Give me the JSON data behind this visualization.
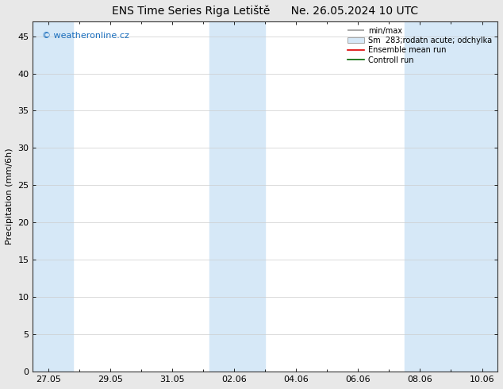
{
  "title_left": "ENS Time Series Riga Letiště",
  "title_right": "Ne. 26.05.2024 10 UTC",
  "ylabel": "Precipitation (mm/6h)",
  "watermark": "© weatheronline.cz",
  "watermark_color": "#1a6ebd",
  "background_color": "#e8e8e8",
  "plot_bg_color": "#ffffff",
  "shaded_band_color": "#d6e8f7",
  "yticks": [
    0,
    5,
    10,
    15,
    20,
    25,
    30,
    35,
    40,
    45
  ],
  "ymax": 47,
  "ymin": 0,
  "shaded_columns": [
    {
      "xmin": -0.5,
      "xmax": 0.8
    },
    {
      "xmin": 5.2,
      "xmax": 7.0
    },
    {
      "xmin": 11.5,
      "xmax": 14.5
    }
  ],
  "x_tick_labels": [
    "27.05",
    "29.05",
    "31.05",
    "02.06",
    "04.06",
    "06.06",
    "08.06",
    "10.06"
  ],
  "x_tick_positions": [
    0,
    2,
    4,
    6,
    8,
    10,
    12,
    14
  ],
  "xmin": -0.5,
  "xmax": 14.5,
  "grid_color": "#cccccc",
  "grid_linestyle": "-",
  "grid_alpha": 0.8,
  "title_fontsize": 10,
  "label_fontsize": 8,
  "tick_fontsize": 8,
  "legend_fontsize": 7
}
